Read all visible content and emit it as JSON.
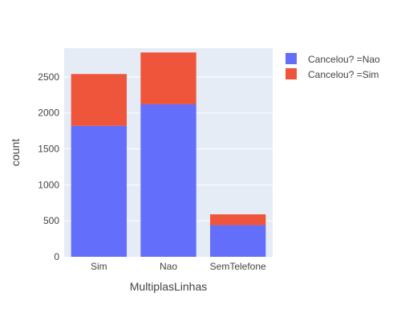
{
  "chart_data": {
    "type": "bar",
    "barmode": "stack",
    "title": "",
    "xlabel": "MultiplasLinhas",
    "ylabel": "count",
    "categories": [
      "Sim",
      "Nao",
      "SemTelefone"
    ],
    "series": [
      {
        "name": "Cancelou? =Nao",
        "color": "#636efa",
        "values": [
          1820,
          2120,
          440
        ]
      },
      {
        "name": "Cancelou? =Sim",
        "color": "#ef553b",
        "values": [
          720,
          720,
          150
        ]
      }
    ],
    "ylim": [
      0,
      2900
    ],
    "yticks": [
      0,
      500,
      1000,
      1500,
      2000,
      2500
    ],
    "ytick_labels": [
      "0",
      "500",
      "1000",
      "1500",
      "2000",
      "2500"
    ],
    "grid": true,
    "plot_background": "#e5ecf6",
    "legend_position": "top-right"
  }
}
